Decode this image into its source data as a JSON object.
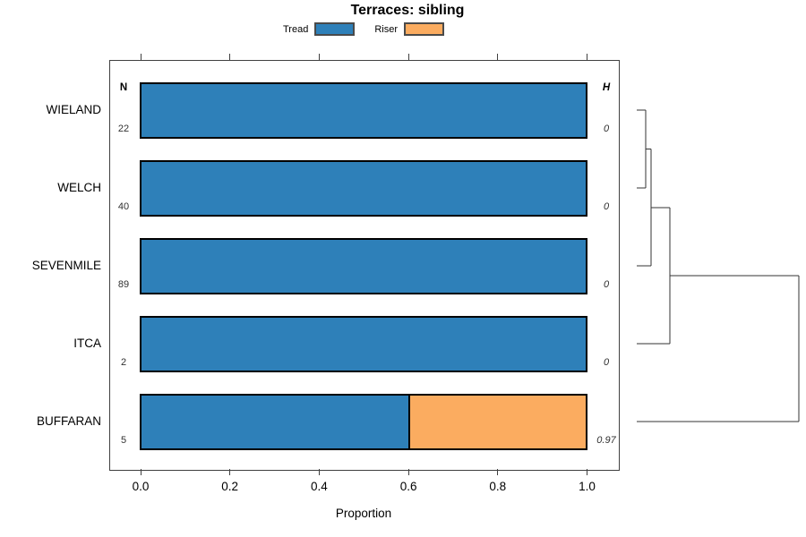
{
  "chart_data": {
    "type": "bar",
    "orientation": "horizontal",
    "stacked": true,
    "title": "Terraces: sibling",
    "xlabel": "Proportion",
    "xlim": [
      0.0,
      1.0
    ],
    "x_ticks": [
      0.0,
      0.2,
      0.4,
      0.6,
      0.8,
      1.0
    ],
    "x_tick_labels": [
      "0.0",
      "0.2",
      "0.4",
      "0.6",
      "0.8",
      "1.0"
    ],
    "grid": false,
    "legend_position": "top-center",
    "columns": {
      "n_header": "N",
      "h_header": "H"
    },
    "categories": [
      "WIELAND",
      "WELCH",
      "SEVENMILE",
      "ITCA",
      "BUFFARAN"
    ],
    "series": [
      {
        "name": "Tread",
        "values": [
          1.0,
          1.0,
          1.0,
          1.0,
          0.6
        ]
      },
      {
        "name": "Riser",
        "values": [
          0.0,
          0.0,
          0.0,
          0.0,
          0.4
        ]
      }
    ],
    "rows": [
      {
        "label": "WIELAND",
        "n": "22",
        "tread": 1.0,
        "riser": 0.0,
        "h": "0"
      },
      {
        "label": "WELCH",
        "n": "40",
        "tread": 1.0,
        "riser": 0.0,
        "h": "0"
      },
      {
        "label": "SEVENMILE",
        "n": "89",
        "tread": 1.0,
        "riser": 0.0,
        "h": "0"
      },
      {
        "label": "ITCA",
        "n": "2",
        "tread": 1.0,
        "riser": 0.0,
        "h": "0"
      },
      {
        "label": "BUFFARAN",
        "n": "5",
        "tread": 0.6,
        "riser": 0.4,
        "h": "0.97"
      }
    ],
    "legend": [
      {
        "label": "Tread",
        "color": "#2E80B9"
      },
      {
        "label": "Riser",
        "color": "#FBAC60"
      }
    ],
    "colors": {
      "tread": "#2E80B9",
      "riser": "#FBAC60",
      "bar_border": "#000000",
      "axis": "#404040",
      "dendrogram_line": "#333333"
    },
    "dendrogram": {
      "leaf_order": [
        "WIELAND",
        "WELCH",
        "SEVENMILE",
        "ITCA",
        "BUFFARAN"
      ],
      "merges": [
        {
          "left": "leaf:0",
          "right": "leaf:1",
          "height_rel": 0.055
        },
        {
          "left": "merge:0",
          "right": "leaf:2",
          "height_rel": 0.088
        },
        {
          "left": "merge:1",
          "right": "leaf:3",
          "height_rel": 0.204
        },
        {
          "left": "merge:2",
          "right": "leaf:4",
          "height_rel": 1.0
        }
      ]
    }
  }
}
